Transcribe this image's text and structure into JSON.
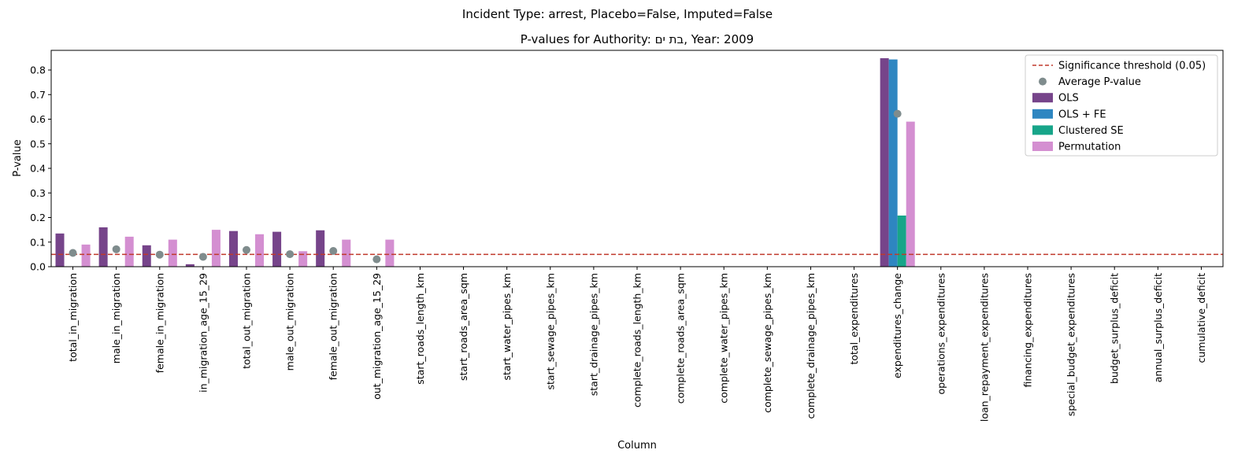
{
  "chart_data": {
    "type": "bar",
    "suptitle": "Incident Type: arrest, Placebo=False, Imputed=False",
    "title": "P-values for Authority: בת ים, Year: 2009",
    "xlabel": "Column",
    "ylabel": "P-value",
    "ylim": [
      0,
      0.88
    ],
    "yticks": [
      0.0,
      0.1,
      0.2,
      0.3,
      0.4,
      0.5,
      0.6,
      0.7,
      0.8
    ],
    "grid": false,
    "legend_position": "top-right",
    "categories": [
      "total_in_migration",
      "male_in_migration",
      "female_in_migration",
      "in_migration_age_15_29",
      "total_out_migration",
      "male_out_migration",
      "female_out_migration",
      "out_migration_age_15_29",
      "start_roads_length_km",
      "start_roads_area_sqm",
      "start_water_pipes_km",
      "start_sewage_pipes_km",
      "start_drainage_pipes_km",
      "complete_roads_length_km",
      "complete_roads_area_sqm",
      "complete_water_pipes_km",
      "complete_sewage_pipes_km",
      "complete_drainage_pipes_km",
      "total_expenditures",
      "expenditures_change",
      "operations_expenditures",
      "loan_repayment_expenditures",
      "financing_expenditures",
      "special_budget_expenditures",
      "budget_surplus_deficit",
      "annual_surplus_deficit",
      "cumulative_deficit"
    ],
    "series": [
      {
        "name": "OLS",
        "color": "#76448a",
        "values": [
          0.135,
          0.16,
          0.087,
          0.01,
          0.145,
          0.142,
          0.148,
          0,
          0,
          0,
          0,
          0,
          0,
          0,
          0,
          0,
          0,
          0,
          0,
          0.848,
          0,
          0,
          0,
          0,
          0,
          0,
          0
        ]
      },
      {
        "name": "OLS + FE",
        "color": "#2e86c1",
        "values": [
          0,
          0,
          0,
          0,
          0,
          0,
          0,
          0,
          0,
          0,
          0,
          0,
          0,
          0,
          0,
          0,
          0,
          0,
          0,
          0.843,
          0,
          0,
          0,
          0,
          0,
          0,
          0
        ]
      },
      {
        "name": "Clustered SE",
        "color": "#17a589",
        "values": [
          0,
          0,
          0,
          0,
          0,
          0,
          0,
          0,
          0,
          0,
          0,
          0,
          0,
          0,
          0,
          0,
          0,
          0,
          0,
          0.208,
          0,
          0,
          0,
          0,
          0,
          0,
          0
        ]
      },
      {
        "name": "Permutation",
        "color": "#d48fd1",
        "values": [
          0.09,
          0.122,
          0.11,
          0.15,
          0.132,
          0.063,
          0.11,
          0.11,
          0,
          0,
          0,
          0,
          0,
          0,
          0,
          0,
          0,
          0,
          0,
          0.59,
          0,
          0,
          0,
          0,
          0,
          0,
          0
        ]
      }
    ],
    "average_pvalue": {
      "name": "Average P-value",
      "color": "#7f8c8d",
      "values": [
        0.056,
        0.071,
        0.049,
        0.04,
        0.068,
        0.051,
        0.064,
        0.03,
        null,
        null,
        null,
        null,
        null,
        null,
        null,
        null,
        null,
        null,
        null,
        0.622,
        null,
        null,
        null,
        null,
        null,
        null,
        null
      ]
    },
    "threshold": {
      "name": "Significance threshold (0.05)",
      "value": 0.05,
      "color": "#c0392b"
    }
  }
}
